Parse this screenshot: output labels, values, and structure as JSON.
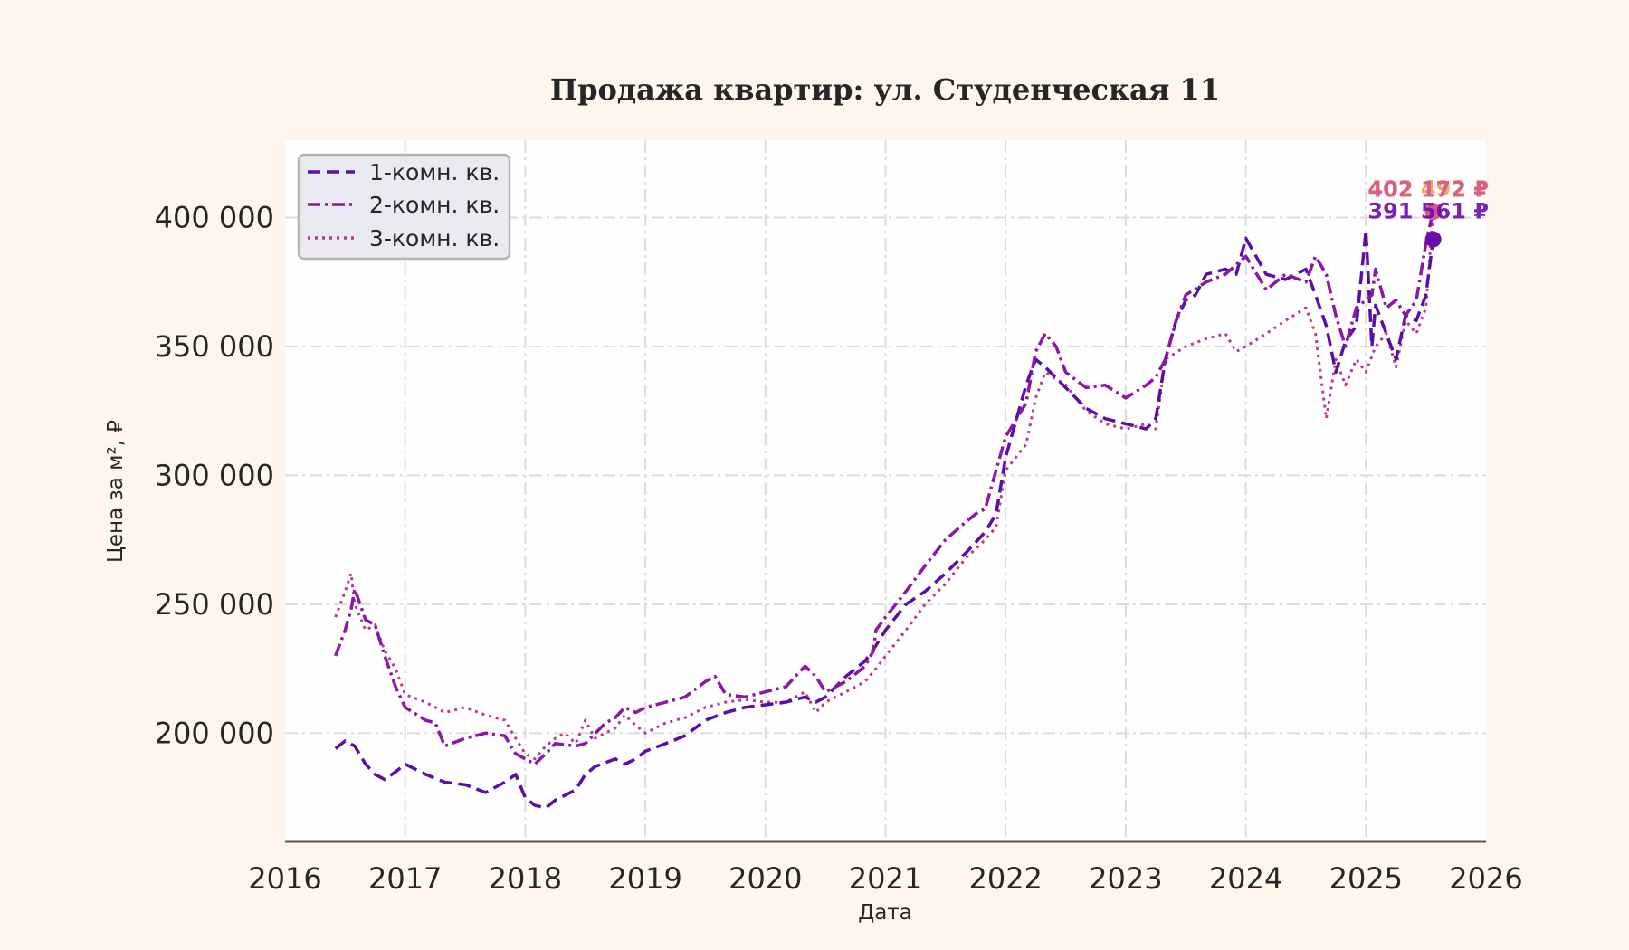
{
  "chart_data": {
    "type": "line",
    "title": "Продажа квартир: ул. Студенческая 11",
    "xlabel": "Дата",
    "ylabel": "Цена за м², ₽",
    "xlim": [
      2016.0,
      2026.0
    ],
    "ylim": [
      158000,
      430000
    ],
    "x_ticks": [
      2016,
      2017,
      2018,
      2019,
      2020,
      2021,
      2022,
      2023,
      2024,
      2025,
      2026
    ],
    "x_tick_labels": [
      "2016",
      "2017",
      "2018",
      "2019",
      "2020",
      "2021",
      "2022",
      "2023",
      "2024",
      "2025",
      "2026"
    ],
    "y_ticks": [
      200000,
      250000,
      300000,
      350000,
      400000
    ],
    "y_tick_labels": [
      "200 000",
      "250 000",
      "300 000",
      "350 000",
      "400 000"
    ],
    "grid": true,
    "legend_position": "top-left",
    "series": [
      {
        "name": "1-комн. кв.",
        "color": "#5a0ea6",
        "style": "dashed",
        "x": [
          2016.42,
          2016.5,
          2016.58,
          2016.67,
          2016.75,
          2016.83,
          2016.92,
          2017.0,
          2017.17,
          2017.33,
          2017.5,
          2017.67,
          2017.83,
          2017.92,
          2018.0,
          2018.08,
          2018.17,
          2018.25,
          2018.42,
          2018.5,
          2018.58,
          2018.75,
          2018.83,
          2018.92,
          2019.0,
          2019.17,
          2019.33,
          2019.5,
          2019.67,
          2019.83,
          2020.0,
          2020.17,
          2020.33,
          2020.42,
          2020.5,
          2020.67,
          2020.83,
          2020.92,
          2021.0,
          2021.17,
          2021.33,
          2021.5,
          2021.67,
          2021.83,
          2021.92,
          2022.0,
          2022.17,
          2022.25,
          2022.33,
          2022.5,
          2022.67,
          2022.83,
          2023.0,
          2023.17,
          2023.25,
          2023.33,
          2023.42,
          2023.5,
          2023.58,
          2023.67,
          2023.83,
          2023.92,
          2024.0,
          2024.17,
          2024.33,
          2024.5,
          2024.58,
          2024.67,
          2024.75,
          2024.83,
          2024.92,
          2025.0,
          2025.05,
          2025.08,
          2025.17,
          2025.25,
          2025.33,
          2025.42,
          2025.5,
          2025.56
        ],
        "y": [
          194000,
          197000,
          195000,
          188000,
          184000,
          182000,
          185000,
          188000,
          184000,
          181000,
          180000,
          177000,
          181000,
          184000,
          175000,
          172000,
          171000,
          174000,
          178000,
          184000,
          187000,
          190000,
          188000,
          190000,
          193000,
          196000,
          199000,
          205000,
          208000,
          210000,
          211000,
          212000,
          214000,
          212000,
          214000,
          222000,
          228000,
          234000,
          240000,
          250000,
          255000,
          262000,
          270000,
          278000,
          285000,
          307000,
          335000,
          345000,
          342000,
          334000,
          326000,
          322000,
          320000,
          318000,
          322000,
          345000,
          360000,
          368000,
          370000,
          378000,
          380000,
          378000,
          392000,
          378000,
          376000,
          380000,
          370000,
          358000,
          340000,
          352000,
          358000,
          395000,
          350000,
          366000,
          355000,
          345000,
          362000,
          360000,
          370000,
          391561
        ]
      },
      {
        "name": "2-комн. кв.",
        "color": "#8a17a5",
        "style": "dashdot",
        "x": [
          2016.42,
          2016.5,
          2016.55,
          2016.58,
          2016.67,
          2016.75,
          2016.83,
          2016.92,
          2017.0,
          2017.17,
          2017.25,
          2017.33,
          2017.5,
          2017.67,
          2017.83,
          2017.92,
          2018.0,
          2018.08,
          2018.17,
          2018.25,
          2018.42,
          2018.5,
          2018.67,
          2018.75,
          2018.83,
          2018.92,
          2019.0,
          2019.17,
          2019.33,
          2019.5,
          2019.58,
          2019.67,
          2019.83,
          2020.0,
          2020.17,
          2020.25,
          2020.33,
          2020.42,
          2020.5,
          2020.67,
          2020.83,
          2020.9,
          2020.92,
          2021.0,
          2021.17,
          2021.33,
          2021.5,
          2021.67,
          2021.75,
          2021.83,
          2022.0,
          2022.17,
          2022.25,
          2022.33,
          2022.42,
          2022.5,
          2022.67,
          2022.83,
          2023.0,
          2023.17,
          2023.25,
          2023.33,
          2023.42,
          2023.5,
          2023.67,
          2023.83,
          2024.0,
          2024.17,
          2024.33,
          2024.5,
          2024.58,
          2024.67,
          2024.75,
          2024.83,
          2024.92,
          2025.0,
          2025.05,
          2025.08,
          2025.17,
          2025.25,
          2025.33,
          2025.42,
          2025.5,
          2025.56
        ],
        "y": [
          230000,
          240000,
          248000,
          256000,
          244000,
          242000,
          230000,
          218000,
          210000,
          205000,
          204000,
          195000,
          198000,
          200000,
          199000,
          192000,
          190000,
          188000,
          192000,
          196000,
          195000,
          196000,
          204000,
          206000,
          210000,
          208000,
          210000,
          212000,
          214000,
          220000,
          222000,
          215000,
          214000,
          216000,
          218000,
          222000,
          226000,
          222000,
          216000,
          220000,
          226000,
          232000,
          240000,
          245000,
          255000,
          265000,
          275000,
          282000,
          285000,
          287000,
          315000,
          328000,
          348000,
          355000,
          350000,
          340000,
          334000,
          335000,
          330000,
          335000,
          338000,
          345000,
          360000,
          370000,
          375000,
          378000,
          385000,
          372000,
          378000,
          375000,
          385000,
          378000,
          362000,
          350000,
          365000,
          368000,
          370000,
          380000,
          365000,
          368000,
          362000,
          368000,
          390000,
          402492
        ]
      },
      {
        "name": "3-комн. кв.",
        "color": "#b43a95",
        "style": "dotted",
        "x": [
          2016.42,
          2016.5,
          2016.55,
          2016.58,
          2016.67,
          2016.75,
          2016.83,
          2016.92,
          2017.0,
          2017.17,
          2017.33,
          2017.5,
          2017.67,
          2017.83,
          2017.92,
          2018.0,
          2018.08,
          2018.17,
          2018.25,
          2018.33,
          2018.42,
          2018.5,
          2018.58,
          2018.75,
          2018.83,
          2018.92,
          2019.0,
          2019.17,
          2019.33,
          2019.5,
          2019.67,
          2019.83,
          2020.0,
          2020.17,
          2020.33,
          2020.42,
          2020.5,
          2020.67,
          2020.83,
          2020.92,
          2021.0,
          2021.17,
          2021.33,
          2021.5,
          2021.67,
          2021.83,
          2021.92,
          2022.0,
          2022.17,
          2022.25,
          2022.33,
          2022.5,
          2022.67,
          2022.83,
          2023.0,
          2023.17,
          2023.25,
          2023.33,
          2023.5,
          2023.67,
          2023.83,
          2023.92,
          2024.0,
          2024.17,
          2024.33,
          2024.5,
          2024.58,
          2024.67,
          2024.75,
          2024.83,
          2024.92,
          2025.0,
          2025.08,
          2025.17,
          2025.25,
          2025.33,
          2025.42,
          2025.5,
          2025.56
        ],
        "y": [
          245000,
          255000,
          262000,
          250000,
          240000,
          242000,
          232000,
          225000,
          215000,
          212000,
          208000,
          210000,
          207000,
          205000,
          198000,
          192000,
          190000,
          195000,
          198000,
          200000,
          196000,
          205000,
          198000,
          202000,
          207000,
          203000,
          200000,
          204000,
          206000,
          210000,
          212000,
          213000,
          212000,
          212000,
          216000,
          208000,
          212000,
          216000,
          220000,
          225000,
          230000,
          240000,
          250000,
          258000,
          268000,
          275000,
          280000,
          302000,
          312000,
          330000,
          340000,
          335000,
          325000,
          320000,
          318000,
          320000,
          318000,
          345000,
          350000,
          353000,
          355000,
          348000,
          350000,
          355000,
          360000,
          365000,
          355000,
          322000,
          345000,
          335000,
          345000,
          340000,
          350000,
          355000,
          342000,
          360000,
          355000,
          365000,
          402172
        ]
      }
    ],
    "end_points": [
      {
        "series": "1-комн. кв.",
        "value": 391561,
        "label": "391 561 ₽",
        "color": "#6a0dad"
      },
      {
        "series": "2-комн. кв.",
        "value": 402492,
        "label": "402 492 ₽",
        "color": "#f4a04f"
      },
      {
        "series": "3-комн. кв.",
        "value": 402172,
        "label": "402 172 ₽",
        "color": "#d6568f"
      }
    ]
  }
}
